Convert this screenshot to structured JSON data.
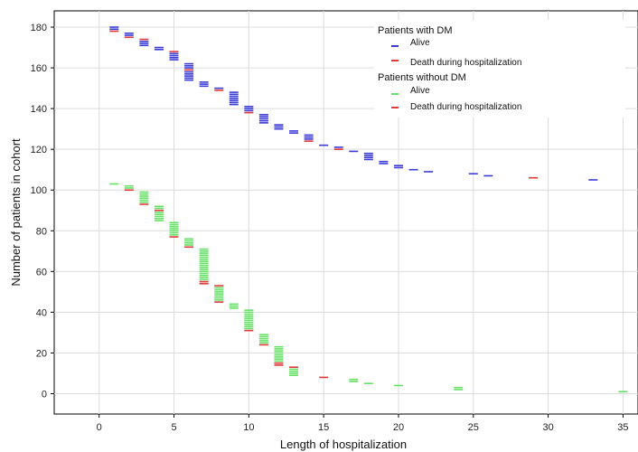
{
  "chart_data": {
    "type": "scatter",
    "xlabel": "Length of hospitalization",
    "ylabel": "Number of patients in cohort",
    "xlim": [
      -3,
      36
    ],
    "ylim": [
      -10,
      188
    ],
    "xticks": [
      0,
      5,
      10,
      15,
      20,
      25,
      30,
      35
    ],
    "yticks": [
      0,
      20,
      40,
      60,
      80,
      100,
      120,
      140,
      160,
      180
    ],
    "grid": true,
    "marker": "horizontal-dash",
    "legend": {
      "placement": "top-right",
      "groups": [
        {
          "header": "Patients with DM",
          "entries": [
            {
              "label": "Alive",
              "color": "#3b3bd6"
            },
            {
              "label": "Death during hospitalization",
              "color": "#e03a3a"
            }
          ]
        },
        {
          "header": "Patients without DM",
          "entries": [
            {
              "label": "Alive",
              "color": "#66e066"
            },
            {
              "label": "Death during hospitalization",
              "color": "#e03a3a"
            }
          ]
        }
      ]
    },
    "series": [
      {
        "group": "Patients with DM",
        "status": "Alive",
        "color": "#3b3bd6",
        "points": [
          {
            "x": 1,
            "y": [
              180,
              179
            ]
          },
          {
            "x": 2,
            "y": [
              177,
              176
            ]
          },
          {
            "x": 3,
            "y": [
              173,
              172,
              171
            ]
          },
          {
            "x": 4,
            "y": [
              170,
              169
            ]
          },
          {
            "x": 5,
            "y": [
              167,
              166,
              165,
              164
            ]
          },
          {
            "x": 6,
            "y": [
              162,
              161,
              160,
              158,
              157,
              156,
              155,
              154
            ]
          },
          {
            "x": 7,
            "y": [
              153,
              152,
              151
            ]
          },
          {
            "x": 8,
            "y": [
              150
            ]
          },
          {
            "x": 9,
            "y": [
              148,
              147,
              146,
              145,
              144,
              143,
              142
            ]
          },
          {
            "x": 10,
            "y": [
              141,
              140,
              139
            ]
          },
          {
            "x": 11,
            "y": [
              137,
              136,
              135,
              134,
              133
            ]
          },
          {
            "x": 12,
            "y": [
              132,
              131,
              130
            ]
          },
          {
            "x": 13,
            "y": [
              129,
              128
            ]
          },
          {
            "x": 14,
            "y": [
              127,
              126,
              125
            ]
          },
          {
            "x": 15,
            "y": [
              122
            ]
          },
          {
            "x": 16,
            "y": [
              121
            ]
          },
          {
            "x": 17,
            "y": [
              119
            ]
          },
          {
            "x": 18,
            "y": [
              118,
              117,
              116,
              115
            ]
          },
          {
            "x": 19,
            "y": [
              114,
              113
            ]
          },
          {
            "x": 20,
            "y": [
              112,
              111
            ]
          },
          {
            "x": 21,
            "y": [
              110
            ]
          },
          {
            "x": 22,
            "y": [
              109
            ]
          },
          {
            "x": 25,
            "y": [
              108
            ]
          },
          {
            "x": 26,
            "y": [
              107
            ]
          },
          {
            "x": 33,
            "y": [
              105
            ]
          }
        ]
      },
      {
        "group": "Patients with DM",
        "status": "Death during hospitalization",
        "color": "#e03a3a",
        "points": [
          {
            "x": 1,
            "y": [
              178
            ]
          },
          {
            "x": 2,
            "y": [
              175
            ]
          },
          {
            "x": 3,
            "y": [
              174
            ]
          },
          {
            "x": 5,
            "y": [
              168
            ]
          },
          {
            "x": 6,
            "y": [
              159
            ]
          },
          {
            "x": 8,
            "y": [
              149
            ]
          },
          {
            "x": 10,
            "y": [
              138
            ]
          },
          {
            "x": 14,
            "y": [
              124
            ]
          },
          {
            "x": 16,
            "y": [
              120
            ]
          },
          {
            "x": 29,
            "y": [
              106
            ]
          }
        ]
      },
      {
        "group": "Patients without DM",
        "status": "Alive",
        "color": "#66e066",
        "points": [
          {
            "x": 1,
            "y": [
              103
            ]
          },
          {
            "x": 2,
            "y": [
              102,
              101
            ]
          },
          {
            "x": 3,
            "y": [
              99,
              98,
              97,
              96,
              95,
              94
            ]
          },
          {
            "x": 4,
            "y": [
              92,
              91,
              89,
              88,
              87,
              86,
              85
            ]
          },
          {
            "x": 5,
            "y": [
              84,
              83,
              82,
              81,
              80,
              79,
              78
            ]
          },
          {
            "x": 6,
            "y": [
              76,
              75,
              74,
              73
            ]
          },
          {
            "x": 7,
            "y": [
              71,
              70,
              69,
              68,
              67,
              66,
              65,
              64,
              63,
              62,
              61,
              60,
              59,
              58,
              57,
              56
            ]
          },
          {
            "x": 8,
            "y": [
              52,
              51,
              50,
              49,
              48,
              47,
              46
            ]
          },
          {
            "x": 9,
            "y": [
              44,
              43,
              42
            ]
          },
          {
            "x": 10,
            "y": [
              41,
              40,
              39,
              38,
              37,
              36,
              35,
              34,
              33,
              32
            ]
          },
          {
            "x": 11,
            "y": [
              29,
              28,
              27,
              26,
              25
            ]
          },
          {
            "x": 12,
            "y": [
              23,
              22,
              21,
              20,
              19,
              18,
              17,
              16
            ]
          },
          {
            "x": 13,
            "y": [
              12,
              11,
              10,
              9
            ]
          },
          {
            "x": 17,
            "y": [
              7,
              6
            ]
          },
          {
            "x": 18,
            "y": [
              5
            ]
          },
          {
            "x": 20,
            "y": [
              4
            ]
          },
          {
            "x": 24,
            "y": [
              3,
              2
            ]
          },
          {
            "x": 35,
            "y": [
              1
            ]
          }
        ]
      },
      {
        "group": "Patients without DM",
        "status": "Death during hospitalization",
        "color": "#e03a3a",
        "points": [
          {
            "x": 2,
            "y": [
              100
            ]
          },
          {
            "x": 3,
            "y": [
              93
            ]
          },
          {
            "x": 4,
            "y": [
              90
            ]
          },
          {
            "x": 5,
            "y": [
              77
            ]
          },
          {
            "x": 6,
            "y": [
              72
            ]
          },
          {
            "x": 7,
            "y": [
              55,
              54
            ]
          },
          {
            "x": 8,
            "y": [
              53,
              45
            ]
          },
          {
            "x": 10,
            "y": [
              31
            ]
          },
          {
            "x": 11,
            "y": [
              24
            ]
          },
          {
            "x": 12,
            "y": [
              15,
              14
            ]
          },
          {
            "x": 13,
            "y": [
              13
            ]
          },
          {
            "x": 15,
            "y": [
              8
            ]
          }
        ]
      }
    ]
  }
}
